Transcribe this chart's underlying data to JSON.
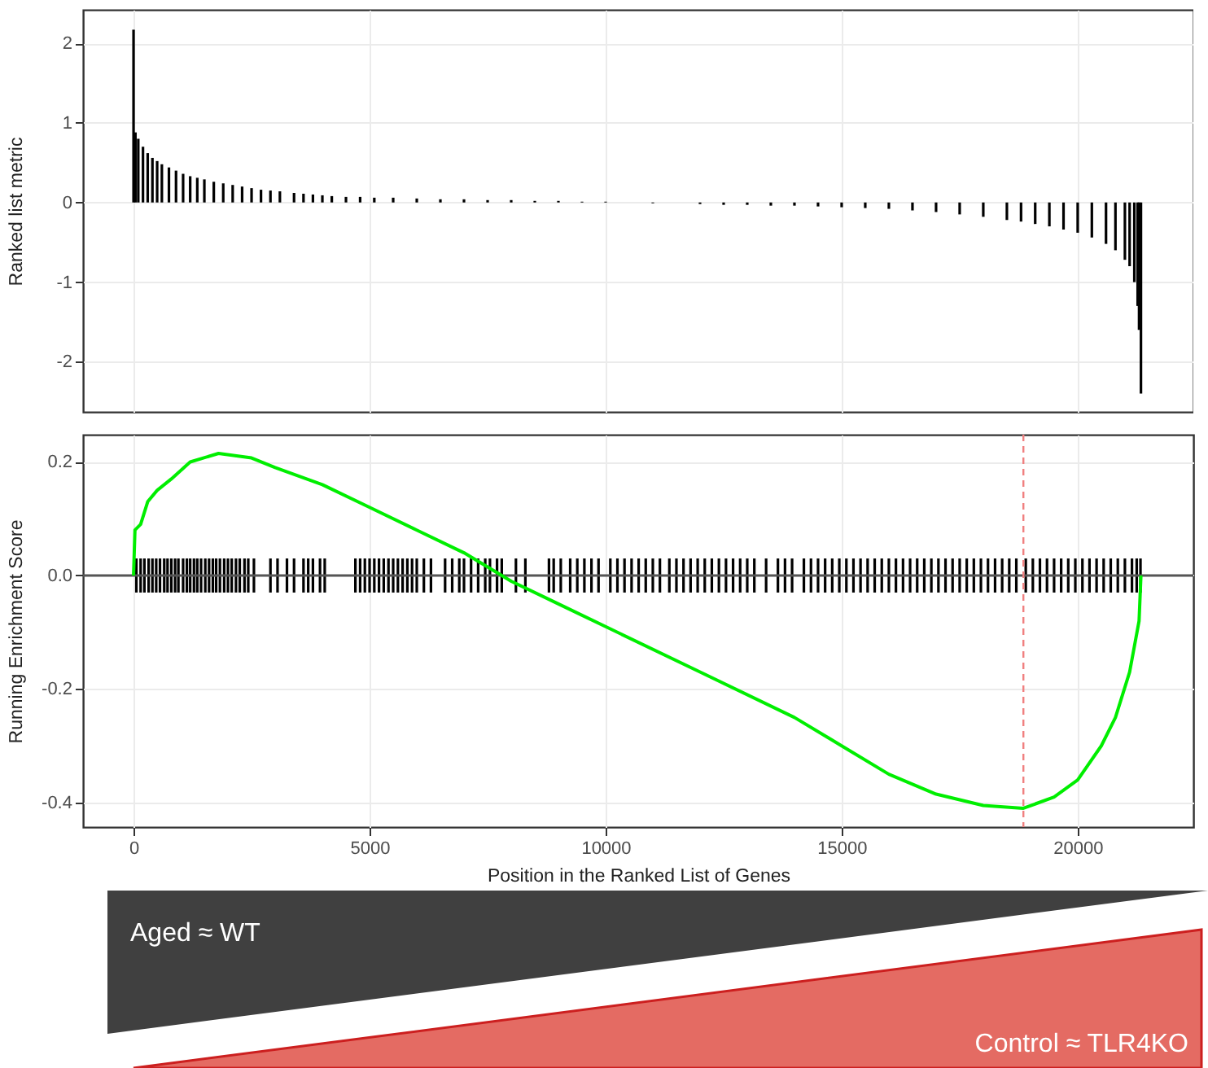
{
  "chart_data": [
    {
      "type": "bar",
      "ylabel": "Ranked list metric",
      "color": "#000000",
      "x": [
        0,
        40,
        100,
        200,
        300,
        400,
        500,
        600,
        750,
        900,
        1050,
        1200,
        1350,
        1500,
        1700,
        1900,
        2100,
        2300,
        2500,
        2700,
        2900,
        3100,
        3400,
        3600,
        3800,
        4000,
        4200,
        4500,
        4800,
        5100,
        5500,
        6000,
        6500,
        7000,
        7500,
        8000,
        8500,
        9000,
        9500,
        10000,
        11000,
        12000,
        12500,
        13000,
        13500,
        14000,
        14500,
        15000,
        15500,
        16000,
        16500,
        17000,
        17500,
        18000,
        18500,
        18800,
        19100,
        19400,
        19700,
        20000,
        20300,
        20600,
        20800,
        21000,
        21100,
        21200,
        21270,
        21300,
        21340
      ],
      "values": [
        2.17,
        0.88,
        0.8,
        0.7,
        0.62,
        0.56,
        0.52,
        0.48,
        0.44,
        0.4,
        0.36,
        0.33,
        0.31,
        0.29,
        0.26,
        0.24,
        0.22,
        0.2,
        0.18,
        0.16,
        0.15,
        0.14,
        0.12,
        0.11,
        0.1,
        0.09,
        0.08,
        0.07,
        0.07,
        0.06,
        0.06,
        0.05,
        0.04,
        0.04,
        0.03,
        0.03,
        0.02,
        0.02,
        0.01,
        0.01,
        -0.01,
        -0.02,
        -0.03,
        -0.03,
        -0.04,
        -0.04,
        -0.05,
        -0.06,
        -0.07,
        -0.08,
        -0.1,
        -0.12,
        -0.15,
        -0.18,
        -0.22,
        -0.24,
        -0.27,
        -0.3,
        -0.34,
        -0.38,
        -0.44,
        -0.52,
        -0.6,
        -0.72,
        -0.8,
        -1.0,
        -1.3,
        -1.6,
        -2.4
      ],
      "xlim": [
        -1070,
        22450
      ],
      "xticks": [
        0,
        5000,
        10000,
        15000,
        20000
      ],
      "ylim": [
        -2.63,
        2.42
      ],
      "yticks": [
        -2,
        -1,
        0,
        1,
        2
      ],
      "grid": true,
      "tick_labels": "y"
    },
    {
      "type": "line",
      "xlabel": "Position in the Ranked List of Genes",
      "ylabel": "Running Enrichment Score",
      "series": [
        {
          "type": "bar",
          "color": "#000000",
          "x": [
            60,
            150,
            230,
            320,
            400,
            480,
            560,
            650,
            720,
            800,
            880,
            950,
            1050,
            1130,
            1200,
            1280,
            1350,
            1430,
            1520,
            1600,
            1680,
            1750,
            1830,
            1920,
            2000,
            2080,
            2170,
            2250,
            2350,
            2430,
            2550,
            2900,
            3050,
            3250,
            3400,
            3600,
            3700,
            3800,
            3950,
            4050,
            4700,
            4800,
            4900,
            5000,
            5100,
            5200,
            5300,
            5400,
            5500,
            5600,
            5700,
            5800,
            5900,
            6000,
            6150,
            6300,
            6600,
            6750,
            6900,
            7000,
            7150,
            7300,
            7450,
            7550,
            7700,
            7800,
            8100,
            8300,
            8800,
            8900,
            9050,
            9250,
            9400,
            9550,
            9700,
            9850,
            10100,
            10250,
            10400,
            10550,
            10700,
            10850,
            11000,
            11150,
            11350,
            11500,
            11650,
            11800,
            11950,
            12100,
            12250,
            12400,
            12550,
            12700,
            12850,
            13000,
            13150,
            13400,
            13650,
            13800,
            13950,
            14200,
            14350,
            14500,
            14650,
            14800,
            14950,
            15100,
            15250,
            15400,
            15550,
            15700,
            15850,
            16000,
            16150,
            16300,
            16450,
            16600,
            16750,
            16900,
            17050,
            17200,
            17350,
            17500,
            17650,
            17800,
            17950,
            18100,
            18250,
            18400,
            18550,
            18700,
            18900,
            19050,
            19200,
            19350,
            19500,
            19650,
            19800,
            19950,
            20100,
            20250,
            20400,
            20550,
            20700,
            20850,
            21000,
            21150,
            21250,
            21330
          ],
          "base": [
            -0.03,
            -0.03,
            -0.03,
            -0.03,
            -0.03,
            -0.03,
            -0.03,
            -0.03,
            -0.03,
            -0.03,
            -0.03,
            -0.03,
            -0.03,
            -0.03,
            -0.03,
            -0.03,
            -0.03,
            -0.03,
            -0.03,
            -0.03,
            -0.03,
            -0.03,
            -0.03,
            -0.03,
            -0.03,
            -0.03,
            -0.03,
            -0.03,
            -0.03,
            -0.03,
            -0.03,
            -0.03,
            -0.03,
            -0.03,
            -0.03,
            -0.03,
            -0.03,
            -0.03,
            -0.03,
            -0.03,
            -0.03,
            -0.03,
            -0.03,
            -0.03,
            -0.03,
            -0.03,
            -0.03,
            -0.03,
            -0.03,
            -0.03,
            -0.03,
            -0.03,
            -0.03,
            -0.03,
            -0.03,
            -0.03,
            -0.03,
            -0.03,
            -0.03,
            -0.03,
            -0.03,
            -0.03,
            -0.03,
            -0.03,
            -0.03,
            -0.03,
            -0.03,
            -0.03,
            -0.03,
            -0.03,
            -0.03,
            -0.03,
            -0.03,
            -0.03,
            -0.03,
            -0.03,
            -0.03,
            -0.03,
            -0.03,
            -0.03,
            -0.03,
            -0.03,
            -0.03,
            -0.03,
            -0.03,
            -0.03,
            -0.03,
            -0.03,
            -0.03,
            -0.03,
            -0.03,
            -0.03,
            -0.03,
            -0.03,
            -0.03,
            -0.03,
            -0.03,
            -0.03,
            -0.03,
            -0.03,
            -0.03,
            -0.03,
            -0.03,
            -0.03,
            -0.03,
            -0.03,
            -0.03,
            -0.03,
            -0.03,
            -0.03,
            -0.03,
            -0.03,
            -0.03,
            -0.03,
            -0.03,
            -0.03,
            -0.03,
            -0.03,
            -0.03,
            -0.03,
            -0.03,
            -0.03,
            -0.03,
            -0.03,
            -0.03,
            -0.03,
            -0.03,
            -0.03,
            -0.03,
            -0.03,
            -0.03,
            -0.03,
            -0.03,
            -0.03,
            -0.03,
            -0.03,
            -0.03,
            -0.03,
            -0.03,
            -0.03,
            -0.03,
            -0.03,
            -0.03,
            -0.03,
            -0.03,
            -0.03,
            -0.03,
            -0.03,
            -0.03,
            -0.03
          ],
          "values": [
            0.06,
            0.06,
            0.06,
            0.06,
            0.06,
            0.06,
            0.06,
            0.06,
            0.06,
            0.06,
            0.06,
            0.06,
            0.06,
            0.06,
            0.06,
            0.06,
            0.06,
            0.06,
            0.06,
            0.06,
            0.06,
            0.06,
            0.06,
            0.06,
            0.06,
            0.06,
            0.06,
            0.06,
            0.06,
            0.06,
            0.06,
            0.06,
            0.06,
            0.06,
            0.06,
            0.06,
            0.06,
            0.06,
            0.06,
            0.06,
            0.06,
            0.06,
            0.06,
            0.06,
            0.06,
            0.06,
            0.06,
            0.06,
            0.06,
            0.06,
            0.06,
            0.06,
            0.06,
            0.06,
            0.06,
            0.06,
            0.06,
            0.06,
            0.06,
            0.06,
            0.06,
            0.06,
            0.06,
            0.06,
            0.06,
            0.06,
            0.06,
            0.06,
            0.06,
            0.06,
            0.06,
            0.06,
            0.06,
            0.06,
            0.06,
            0.06,
            0.06,
            0.06,
            0.06,
            0.06,
            0.06,
            0.06,
            0.06,
            0.06,
            0.06,
            0.06,
            0.06,
            0.06,
            0.06,
            0.06,
            0.06,
            0.06,
            0.06,
            0.06,
            0.06,
            0.06,
            0.06,
            0.06,
            0.06,
            0.06,
            0.06,
            0.06,
            0.06,
            0.06,
            0.06,
            0.06,
            0.06,
            0.06,
            0.06,
            0.06,
            0.06,
            0.06,
            0.06,
            0.06,
            0.06,
            0.06,
            0.06,
            0.06,
            0.06,
            0.06,
            0.06,
            0.06,
            0.06,
            0.06,
            0.06,
            0.06,
            0.06,
            0.06,
            0.06,
            0.06,
            0.06,
            0.06,
            0.06,
            0.06,
            0.06,
            0.06,
            0.06,
            0.06,
            0.06,
            0.06,
            0.06,
            0.06,
            0.06,
            0.06,
            0.06,
            0.06,
            0.06,
            0.06,
            0.06,
            0.06
          ]
        },
        {
          "color": "#00ee00",
          "x": [
            0,
            30,
            150,
            300,
            500,
            800,
            1200,
            1800,
            2500,
            3000,
            4000,
            5000,
            6000,
            7000,
            8000,
            9000,
            10000,
            12000,
            14000,
            15000,
            16000,
            17000,
            18000,
            18850,
            19500,
            20000,
            20500,
            20800,
            21100,
            21300,
            21340
          ],
          "values": [
            0,
            0.08,
            0.09,
            0.13,
            0.15,
            0.17,
            0.2,
            0.215,
            0.207,
            0.19,
            0.16,
            0.12,
            0.08,
            0.04,
            -0.01,
            -0.05,
            -0.09,
            -0.17,
            -0.25,
            -0.3,
            -0.35,
            -0.385,
            -0.405,
            -0.41,
            -0.39,
            -0.36,
            -0.3,
            -0.25,
            -0.17,
            -0.08,
            0
          ]
        }
      ],
      "xlim": [
        -1070,
        22450
      ],
      "xticks": [
        0,
        5000,
        10000,
        15000,
        20000
      ],
      "ylim": [
        -0.443,
        0.248
      ],
      "yticks": [
        -0.4,
        -0.2,
        {
          "value": 0,
          "label": "0.0"
        },
        0.2
      ],
      "grid": true,
      "ref_lines": [
        {
          "axis": "y",
          "value": 0,
          "color": "#555555",
          "line_style": "solid"
        },
        {
          "axis": "x",
          "value": 18850,
          "color": "#f08080",
          "line_style": "dashed"
        }
      ],
      "annotations": [
        "Aged ≈ WT",
        "Control ≈ TLR4KO"
      ]
    }
  ]
}
